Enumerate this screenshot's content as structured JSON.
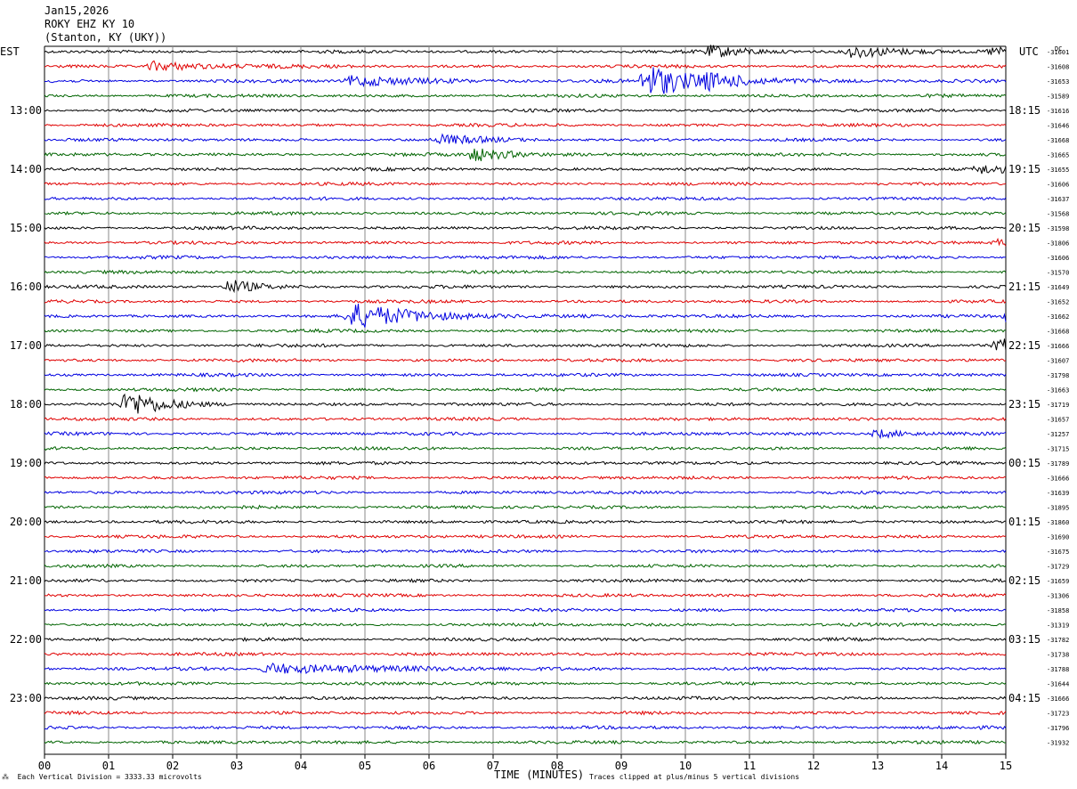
{
  "header": {
    "date": "Jan15,2026",
    "station": "ROKY EHZ KY 10",
    "location": "(Stanton, KY (UKY))"
  },
  "left_tz": "EST",
  "right_tz": "UTC",
  "dc_label": "DC",
  "footer": {
    "scale": "Each Vertical Division = 3333.33 microvolts",
    "clip": "Traces clipped at plus/minus 5 vertical divisions"
  },
  "colors": {
    "traces": [
      "#000000",
      "#e00000",
      "#0000e0",
      "#006400"
    ],
    "grid": "#888888"
  },
  "chart_data": {
    "type": "line",
    "title": "",
    "xlabel": "TIME (MINUTES)",
    "ylabel": "",
    "xlim": [
      0,
      15
    ],
    "x_ticks": [
      "00",
      "01",
      "02",
      "03",
      "04",
      "05",
      "06",
      "07",
      "08",
      "09",
      "10",
      "11",
      "12",
      "13",
      "14",
      "15"
    ],
    "rows_per_hour": 4,
    "row_count": 48,
    "left_hour_labels": [
      {
        "row": 4,
        "label": "13:00"
      },
      {
        "row": 8,
        "label": "14:00"
      },
      {
        "row": 12,
        "label": "15:00"
      },
      {
        "row": 16,
        "label": "16:00"
      },
      {
        "row": 20,
        "label": "17:00"
      },
      {
        "row": 24,
        "label": "18:00"
      },
      {
        "row": 28,
        "label": "19:00"
      },
      {
        "row": 32,
        "label": "20:00"
      },
      {
        "row": 36,
        "label": "21:00"
      },
      {
        "row": 40,
        "label": "22:00"
      },
      {
        "row": 44,
        "label": "23:00"
      }
    ],
    "right_hour_labels": [
      {
        "row": 4,
        "label": "18:15"
      },
      {
        "row": 8,
        "label": "19:15"
      },
      {
        "row": 12,
        "label": "20:15"
      },
      {
        "row": 16,
        "label": "21:15"
      },
      {
        "row": 20,
        "label": "22:15"
      },
      {
        "row": 24,
        "label": "23:15"
      },
      {
        "row": 28,
        "label": "00:15"
      },
      {
        "row": 32,
        "label": "01:15"
      },
      {
        "row": 36,
        "label": "02:15"
      },
      {
        "row": 40,
        "label": "03:15"
      },
      {
        "row": 44,
        "label": "04:15"
      }
    ],
    "dc_offsets": [
      "-31601",
      "-31608",
      "-31653",
      "-31589",
      "-31616",
      "-31646",
      "-31668",
      "-31665",
      "-31655",
      "-31606",
      "-31637",
      "-31568",
      "-31598",
      "-31806",
      "-31606",
      "-31570",
      "-31649",
      "-31652",
      "-31662",
      "-31668",
      "-31666",
      "-31607",
      "-31798",
      "-31663",
      "-31719",
      "-31657",
      "-31257",
      "-31715",
      "-31789",
      "-31666",
      "-31639",
      "-31895",
      "-31860",
      "-31690",
      "-31675",
      "-31729",
      "-31659",
      "-31306",
      "-31858",
      "-31319",
      "-31782",
      "-31738",
      "-31788",
      "-31644",
      "-31666",
      "-31723",
      "-31796",
      "-31932"
    ],
    "events": [
      {
        "row": 0,
        "minute": 10.4,
        "amp": 1.0,
        "dur": 0.6
      },
      {
        "row": 0,
        "minute": 12.6,
        "amp": 1.1,
        "dur": 0.7
      },
      {
        "row": 0,
        "minute": 14.8,
        "amp": 0.7,
        "dur": 0.6
      },
      {
        "row": 1,
        "minute": 1.7,
        "amp": 0.9,
        "dur": 0.9
      },
      {
        "row": 2,
        "minute": 4.8,
        "amp": 1.0,
        "dur": 1.0
      },
      {
        "row": 2,
        "minute": 9.4,
        "amp": 3.2,
        "dur": 0.7
      },
      {
        "row": 2,
        "minute": 10.3,
        "amp": 1.0,
        "dur": 0.7
      },
      {
        "row": 6,
        "minute": 6.2,
        "amp": 0.8,
        "dur": 0.6
      },
      {
        "row": 7,
        "minute": 6.7,
        "amp": 1.2,
        "dur": 0.6
      },
      {
        "row": 8,
        "minute": 14.6,
        "amp": 0.8,
        "dur": 0.6
      },
      {
        "row": 13,
        "minute": 14.9,
        "amp": 0.7,
        "dur": 0.4
      },
      {
        "row": 16,
        "minute": 2.9,
        "amp": 1.3,
        "dur": 0.4
      },
      {
        "row": 18,
        "minute": 4.8,
        "amp": 2.3,
        "dur": 1.0
      },
      {
        "row": 18,
        "minute": 15.0,
        "amp": 0.9,
        "dur": 0.3
      },
      {
        "row": 20,
        "minute": 14.9,
        "amp": 1.2,
        "dur": 0.6
      },
      {
        "row": 24,
        "minute": 1.3,
        "amp": 2.5,
        "dur": 0.5
      },
      {
        "row": 26,
        "minute": 13.0,
        "amp": 0.8,
        "dur": 0.5
      },
      {
        "row": 42,
        "minute": 3.5,
        "amp": 1.0,
        "dur": 1.6
      }
    ]
  }
}
